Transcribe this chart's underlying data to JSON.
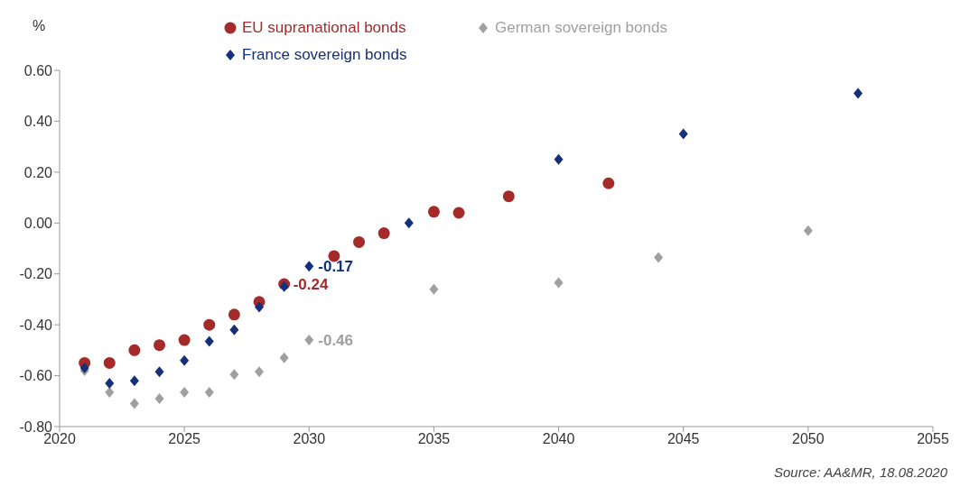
{
  "chart_data": {
    "type": "scatter",
    "ylabel": "%",
    "legend": "top",
    "xlim": [
      2020,
      2055
    ],
    "xticks": [
      2020,
      2025,
      2030,
      2035,
      2040,
      2045,
      2050,
      2055
    ],
    "ylim": [
      -0.8,
      0.6
    ],
    "yticks": [
      {
        "value": -0.8,
        "label": "-0.80"
      },
      {
        "value": -0.6,
        "label": "-0.60"
      },
      {
        "value": -0.4,
        "label": "-0.40"
      },
      {
        "value": -0.2,
        "label": "-0.20"
      },
      {
        "value": 0,
        "label": "0.00"
      },
      {
        "value": 0.2,
        "label": "0.20"
      },
      {
        "value": 0.4,
        "label": "0.40"
      },
      {
        "value": 0.6,
        "label": "0.60"
      }
    ],
    "series": [
      {
        "name": "EU supranational bonds",
        "color": "#a52a2a",
        "marker": "circle",
        "x": [
          2021,
          2022,
          2023,
          2024,
          2025,
          2026,
          2027,
          2028,
          2029,
          2031,
          2032,
          2033,
          2035,
          2036,
          2038,
          2042
        ],
        "values": [
          -0.55,
          -0.55,
          -0.5,
          -0.48,
          -0.46,
          -0.4,
          -0.36,
          -0.31,
          -0.24,
          -0.13,
          -0.075,
          -0.04,
          0.044,
          0.04,
          0.105,
          0.156
        ],
        "value_labels": [
          null,
          null,
          null,
          null,
          null,
          null,
          null,
          null,
          "-0.24",
          null,
          null,
          null,
          null,
          null,
          null,
          null
        ]
      },
      {
        "name": "German sovereign bonds",
        "color": "#a0a0a0",
        "marker": "diamond",
        "x": [
          2021,
          2022,
          2023,
          2024,
          2025,
          2026,
          2027,
          2028,
          2029,
          2030,
          2035,
          2040,
          2044,
          2050
        ],
        "values": [
          -0.58,
          -0.665,
          -0.71,
          -0.69,
          -0.665,
          -0.665,
          -0.595,
          -0.585,
          -0.53,
          -0.46,
          -0.26,
          -0.235,
          -0.135,
          -0.03
        ],
        "value_labels": [
          null,
          null,
          null,
          null,
          null,
          null,
          null,
          null,
          null,
          "-0.46",
          null,
          null,
          null,
          null
        ]
      },
      {
        "name": "France sovereign bonds",
        "color": "#14307a",
        "marker": "diamond",
        "x": [
          2021,
          2022,
          2023,
          2024,
          2025,
          2026,
          2027,
          2028,
          2029,
          2030,
          2034,
          2040,
          2045,
          2052
        ],
        "values": [
          -0.57,
          -0.63,
          -0.62,
          -0.585,
          -0.54,
          -0.465,
          -0.42,
          -0.33,
          -0.25,
          -0.17,
          0,
          0.25,
          0.35,
          0.51
        ],
        "value_labels": [
          null,
          null,
          null,
          null,
          null,
          null,
          null,
          null,
          null,
          "-0.17",
          null,
          null,
          null,
          null
        ]
      }
    ],
    "annotations": [
      "Source: AA&MR, 18.08.2020"
    ]
  }
}
